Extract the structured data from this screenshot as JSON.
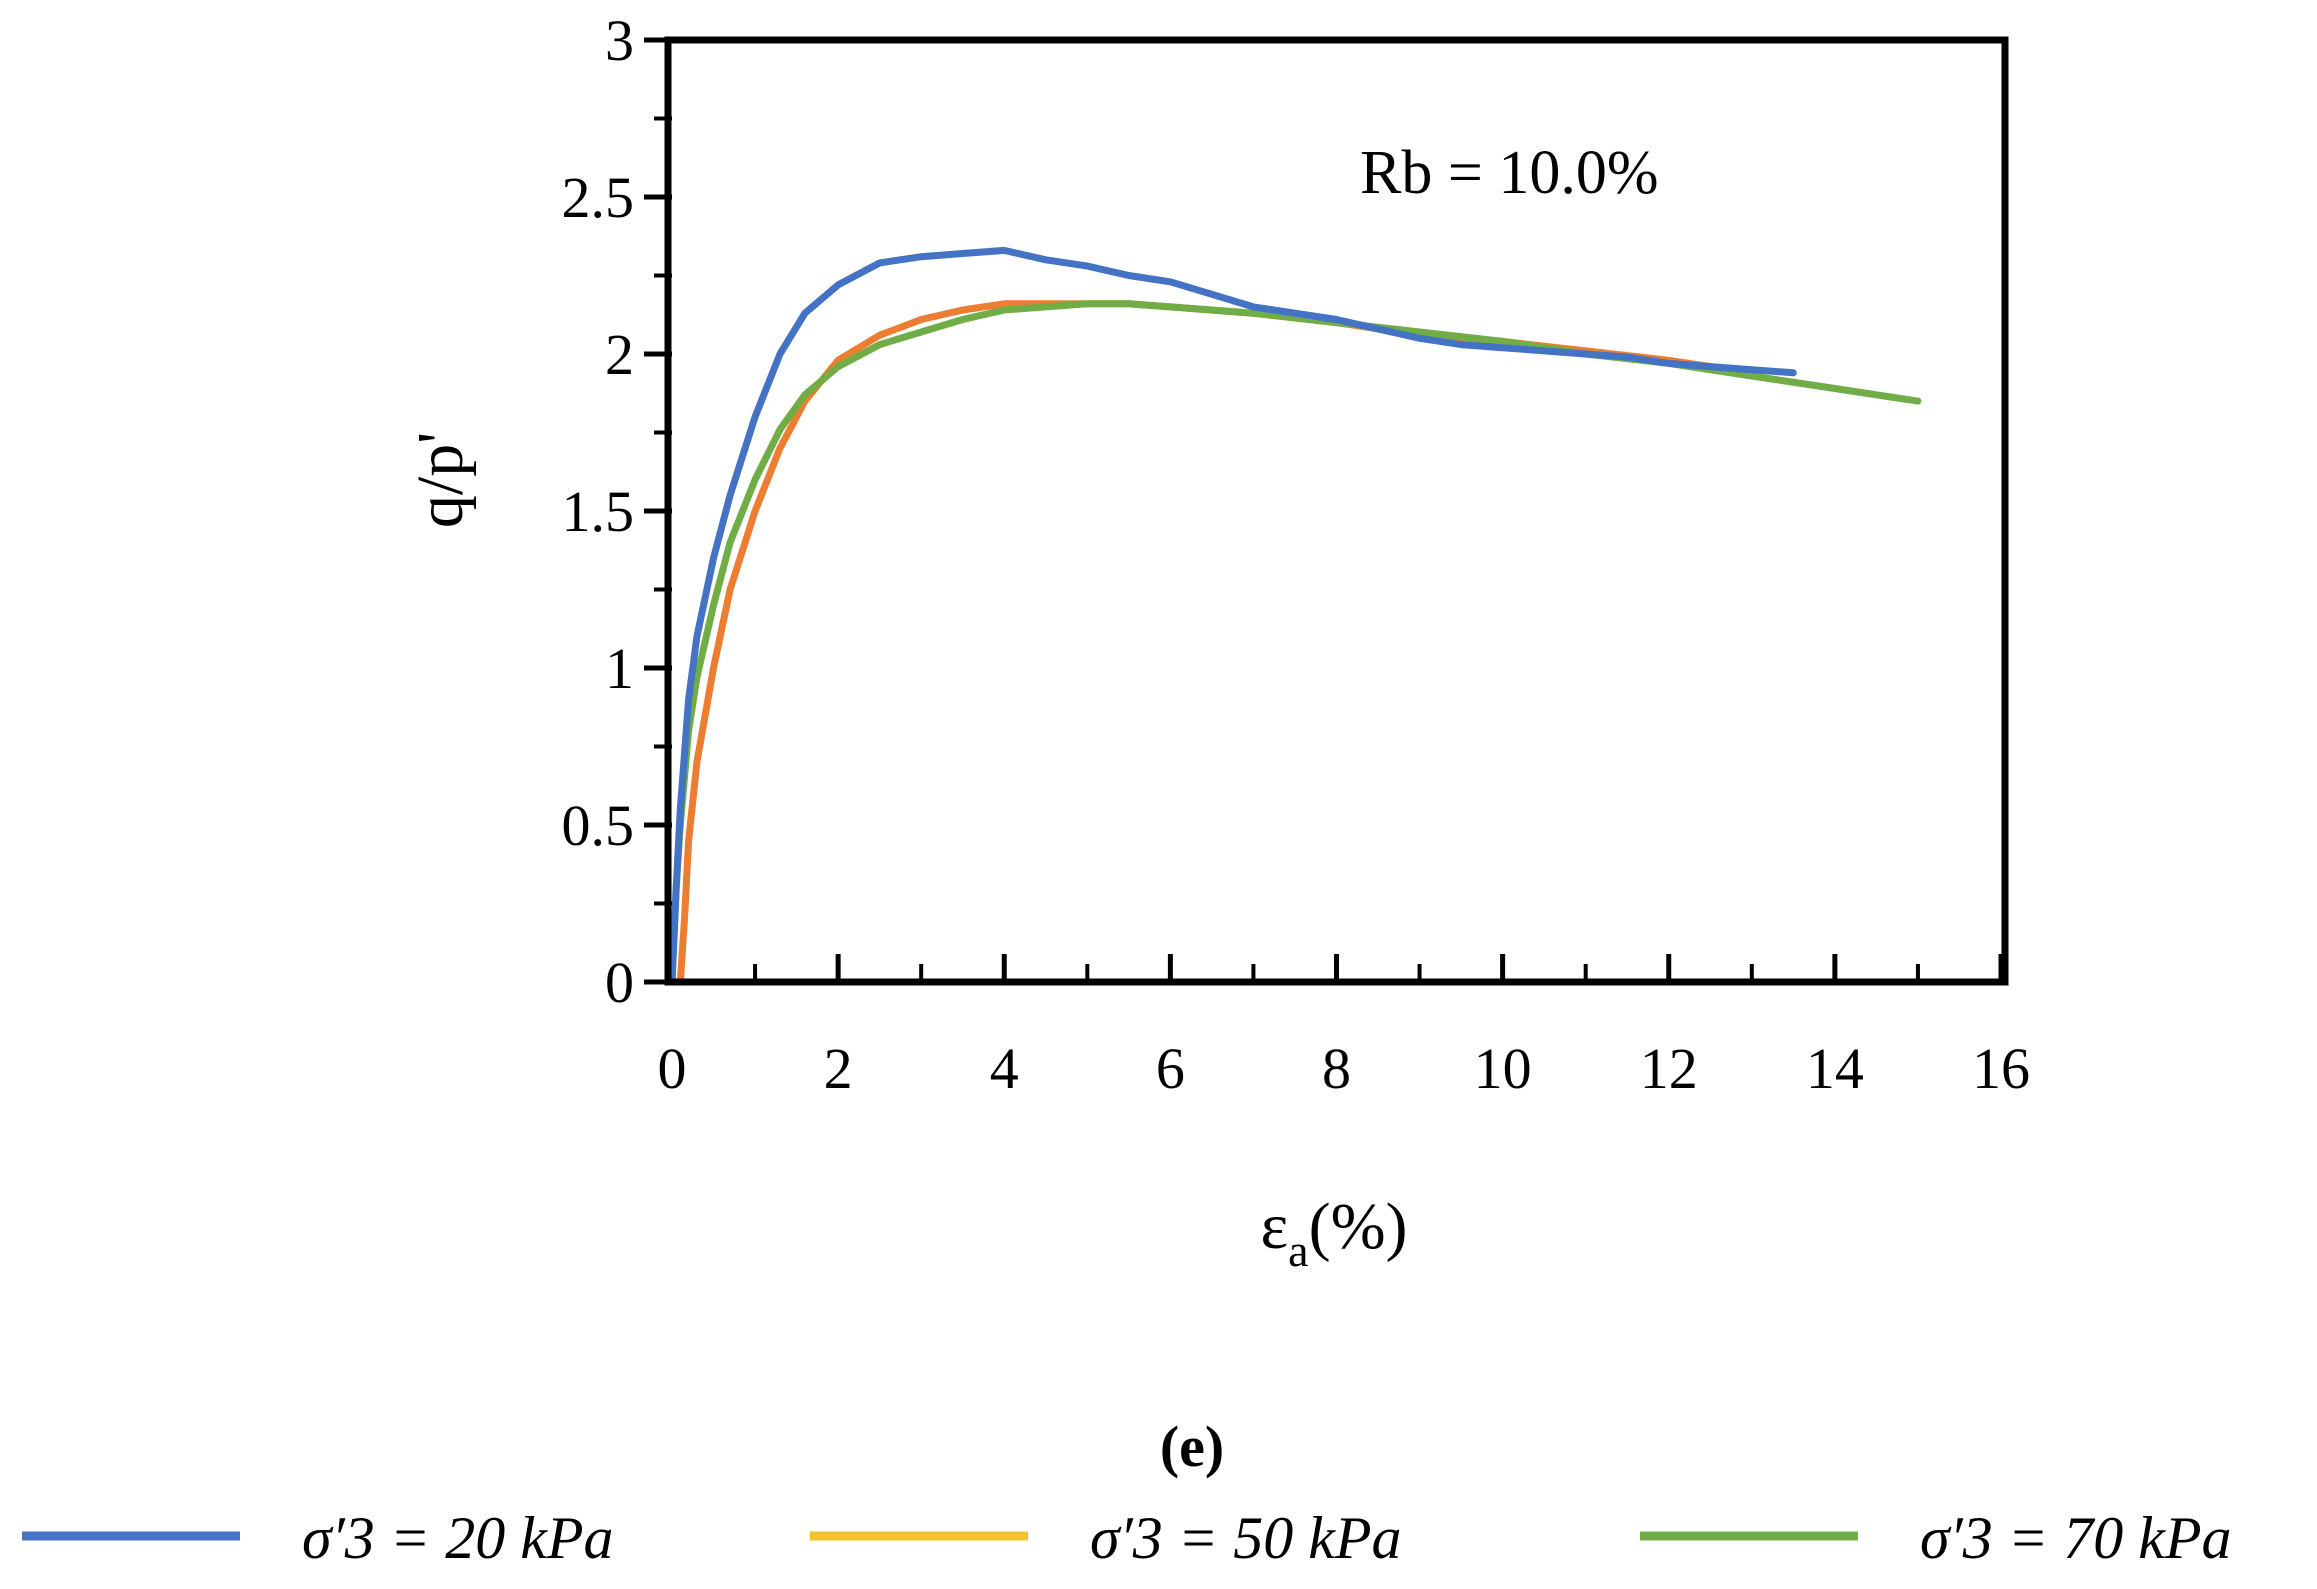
{
  "chart_data": {
    "type": "line",
    "title": "",
    "xlabel": "εa(%)",
    "xlabel_main": "ε",
    "xlabel_sub": "a",
    "xlabel_rest": "(%)",
    "ylabel": "q/p'",
    "xlim": [
      0,
      16
    ],
    "ylim": [
      0,
      3
    ],
    "xticks": [
      0,
      2,
      4,
      6,
      8,
      10,
      12,
      14,
      16
    ],
    "yticks": [
      0,
      0.5,
      1,
      1.5,
      2,
      2.5,
      3
    ],
    "grid": false,
    "annotation": "Rb = 10.0%",
    "panel_label": "(e)",
    "legend_position": "bottom",
    "series": [
      {
        "name": "σ′3 = 20 kPa",
        "color": "#4472C4",
        "x": [
          0,
          0.05,
          0.1,
          0.2,
          0.3,
          0.5,
          0.7,
          1.0,
          1.3,
          1.6,
          2.0,
          2.5,
          3.0,
          3.5,
          4.0,
          4.5,
          5.0,
          5.5,
          6.0,
          6.5,
          7.0,
          7.5,
          8.0,
          8.5,
          9.0,
          9.5,
          10.0,
          10.5,
          11.0,
          11.5,
          12.0,
          12.5,
          13.0,
          13.5
        ],
        "y": [
          0,
          0.3,
          0.55,
          0.9,
          1.1,
          1.35,
          1.55,
          1.8,
          2.0,
          2.13,
          2.22,
          2.29,
          2.31,
          2.32,
          2.33,
          2.3,
          2.28,
          2.25,
          2.23,
          2.19,
          2.15,
          2.13,
          2.11,
          2.08,
          2.05,
          2.03,
          2.02,
          2.01,
          2.0,
          1.99,
          1.97,
          1.96,
          1.95,
          1.94
        ]
      },
      {
        "name": "σ′3 = 50 kPa",
        "color": "#ED7D31",
        "legend_color": "#F2C12E",
        "x": [
          0.1,
          0.15,
          0.2,
          0.3,
          0.5,
          0.7,
          1.0,
          1.3,
          1.6,
          2.0,
          2.5,
          3.0,
          3.5,
          4.0,
          4.5,
          5.0,
          5.5,
          6.0,
          7.0,
          8.0,
          9.0,
          10.0,
          11.0,
          12.0,
          13.0
        ],
        "y": [
          0,
          0.2,
          0.45,
          0.7,
          1.0,
          1.25,
          1.5,
          1.7,
          1.85,
          1.98,
          2.06,
          2.11,
          2.14,
          2.16,
          2.16,
          2.16,
          2.16,
          2.15,
          2.13,
          2.1,
          2.06,
          2.04,
          2.01,
          1.98,
          1.94
        ]
      },
      {
        "name": "σ′3 = 70 kPa",
        "color": "#70AD47",
        "x": [
          0,
          0.05,
          0.1,
          0.2,
          0.3,
          0.5,
          0.7,
          1.0,
          1.3,
          1.6,
          2.0,
          2.5,
          3.0,
          3.5,
          4.0,
          4.5,
          5.0,
          5.5,
          6.0,
          7.0,
          8.0,
          9.0,
          10.0,
          11.0,
          12.0,
          13.0,
          14.0,
          15.0
        ],
        "y": [
          0,
          0.3,
          0.5,
          0.8,
          0.97,
          1.2,
          1.4,
          1.6,
          1.76,
          1.87,
          1.96,
          2.03,
          2.07,
          2.11,
          2.14,
          2.15,
          2.16,
          2.16,
          2.15,
          2.13,
          2.1,
          2.07,
          2.04,
          2.0,
          1.97,
          1.93,
          1.89,
          1.85
        ]
      }
    ]
  }
}
